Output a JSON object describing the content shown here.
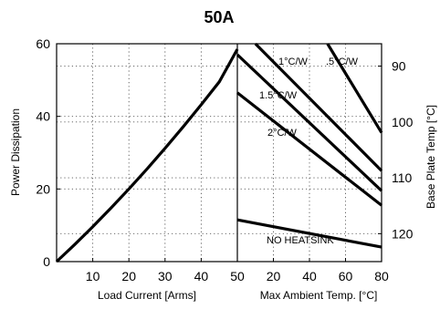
{
  "chart_data": {
    "type": "line",
    "title": "50A",
    "ylabel_left": "Power Dissipation",
    "ylabel_right": "Base Plate Temp [°C]",
    "xlabel_left": "Load Current  [Arms]",
    "xlabel_right": "Max Ambient Temp. [°C]",
    "left_panel": {
      "x_ticks": [
        10,
        20,
        30,
        40,
        50
      ],
      "xlim": [
        0,
        50
      ],
      "series": [
        {
          "x": [
            0,
            5,
            10,
            15,
            20,
            25,
            30,
            35,
            40,
            45,
            50
          ],
          "y": [
            0,
            4.7,
            9.6,
            14.7,
            20.0,
            25.5,
            31.2,
            37.1,
            43.2,
            49.5,
            58.5
          ]
        }
      ]
    },
    "right_panel": {
      "x_ticks": [
        20,
        40,
        60,
        80
      ],
      "xlim": [
        0,
        80
      ],
      "series": [
        {
          "name": "NO HEATSINK",
          "x": [
            0,
            80
          ],
          "y": [
            11.5,
            4.0
          ]
        },
        {
          "name": "2°C/W",
          "x": [
            0,
            80
          ],
          "y": [
            46.5,
            15.5
          ]
        },
        {
          "name": "1.5°C/W",
          "x": [
            0,
            80
          ],
          "y": [
            57.0,
            19.5
          ]
        },
        {
          "name": "1°C/W",
          "x": [
            10,
            80
          ],
          "y": [
            60,
            25.0
          ]
        },
        {
          "name": ".5°C/W",
          "x": [
            50,
            80
          ],
          "y": [
            60,
            35.5
          ]
        }
      ]
    },
    "y_left_ticks": [
      0,
      20,
      40,
      60
    ],
    "ylim_left": [
      0,
      60
    ],
    "y_right_ticks": [
      90,
      100,
      110,
      120
    ],
    "ylim_right": [
      125,
      86
    ],
    "grid": true
  }
}
